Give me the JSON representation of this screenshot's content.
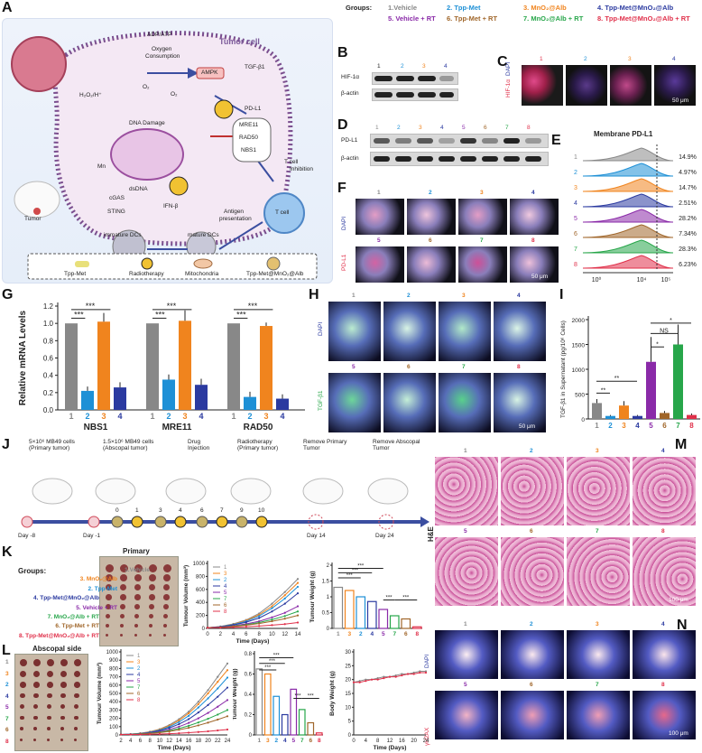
{
  "panels": {
    "A": "A",
    "B": "B",
    "C": "C",
    "D": "D",
    "E": "E",
    "F": "F",
    "G": "G",
    "H": "H",
    "I": "I",
    "J": "J",
    "K": "K",
    "L": "L",
    "M": "M",
    "N": "N"
  },
  "schematic": {
    "tumor_cell": "Tumor cell",
    "adp_atp": "ADP/ATP",
    "oxygen": "Oxygen",
    "consumption": "Consumption",
    "ampk": "AMPK",
    "tgf": "TGF-β1",
    "pdl1": "PD-L1",
    "h2o2": "H₂O₂/H⁺",
    "o2a": "O₂",
    "o2b": "O₂",
    "dna_damage": "DNA Damage",
    "mre11": "MRE11",
    "rad50": "RAD50",
    "nbs1": "NBS1",
    "tcell_inh1": "T cell",
    "tcell_inh2": "Inhibition",
    "tcell": "T cell",
    "tumor": "Tumor",
    "dsdna": "dsDNA",
    "cgas": "cGAS",
    "sting": "STING",
    "ifn": "IFN-β",
    "immature": "immature DCs",
    "mature": "mature DCs",
    "antigen1": "Antigen",
    "antigen2": "presentation",
    "mn": "Mn",
    "legend": [
      "Tpp-Met",
      "Radiotherapy",
      "Mitochondria",
      "Tpp-Met@MnO₂@Alb"
    ]
  },
  "groups_header": {
    "title": "Groups:",
    "g1": "1.Vehicle",
    "g2": "2. Tpp-Met",
    "g3": "3. MnO₂@Alb",
    "g4": "4. Tpp-Met@MnO₂@Alb",
    "g5": "5. Vehicle + RT",
    "g6": "6. Tpp-Met + RT",
    "g7": "7. MnO₂@Alb + RT",
    "g8": "8. Tpp-Met@MnO₂@Alb + RT"
  },
  "colors": {
    "g1": "#888888",
    "g2": "#1e90d6",
    "g3": "#f0841e",
    "g4": "#2b3aa0",
    "g5": "#8a2aa8",
    "g6": "#a0662a",
    "g7": "#27a64a",
    "g8": "#e0304a"
  },
  "blotB": {
    "lanes": [
      "1",
      "2",
      "3",
      "4"
    ],
    "rows": [
      "HIF-1α",
      "β-actin"
    ]
  },
  "blotD": {
    "lanes": [
      "1",
      "2",
      "3",
      "4",
      "5",
      "6",
      "7",
      "8"
    ],
    "rows": [
      "PD-L1",
      "β-actin"
    ]
  },
  "panelC": {
    "lanes": [
      "1",
      "2",
      "3",
      "4"
    ],
    "ylabel_a": "HIF-1α",
    "ylabel_b": "DAPI",
    "scale": "50 μm"
  },
  "panelE": {
    "title": "Membrane PD-L1",
    "lanes": [
      "1",
      "2",
      "3",
      "4",
      "5",
      "6",
      "7",
      "8"
    ],
    "pct": [
      "14.9%",
      "4.97%",
      "14.7%",
      "2.51%",
      "28.2%",
      "7.34%",
      "28.3%",
      "6.23%"
    ],
    "x_ticks": [
      "10⁰",
      "10⁴",
      "10⁵"
    ]
  },
  "panelF": {
    "lanes": [
      "1",
      "2",
      "3",
      "4",
      "5",
      "6",
      "7",
      "8"
    ],
    "ylabel_a": "PD-L1",
    "ylabel_b": "DAPI",
    "scale": "50 μm"
  },
  "panelH": {
    "lanes": [
      "1",
      "2",
      "3",
      "4",
      "5",
      "6",
      "7",
      "8"
    ],
    "ylabel_a": "TGF-β1",
    "ylabel_b": "DAPI",
    "scale": "50 μm"
  },
  "panelM": {
    "lanes": [
      "1",
      "2",
      "3",
      "4",
      "5",
      "6",
      "7",
      "8"
    ],
    "side": "H&E",
    "scale": "100 μm"
  },
  "panelN": {
    "lanes": [
      "1",
      "2",
      "3",
      "4",
      "5",
      "6",
      "7",
      "8"
    ],
    "ylabel_a": "γH2AX",
    "ylabel_b": "DAPI",
    "scale": "100 μm"
  },
  "panelJ": {
    "legend": [
      "5×10⁶ MB49 cells (Primary tumor)",
      "1.5×10⁶ MB49 cells (Abscopal tumor)",
      "Drug Injection",
      "Radiotherapy (Primary tumor)",
      "Remove Primary Tumor",
      "Remove Abscopal Tumor"
    ],
    "days": [
      "Day -8",
      "Day -1",
      "0",
      "1",
      "3",
      "4",
      "6",
      "7",
      "9",
      "10",
      "Day 14",
      "Day 24"
    ]
  },
  "panelK": {
    "groups_title": "Groups:",
    "primary": "Primary",
    "group_labels": [
      "1.Vehicle",
      "3. MnO₂@Alb",
      "2. Tpp-Met",
      "4. Tpp-Met@MnO₂@Alb",
      "5. Vehicle + RT",
      "7. MnO₂@Alb + RT",
      "6. Tpp-Met + RT",
      "8. Tpp-Met@MnO₂@Alb + RT"
    ]
  },
  "panelL": {
    "abscopal": "Abscopal side",
    "rows": [
      "1",
      "3",
      "2",
      "4",
      "5",
      "7",
      "6",
      "8"
    ]
  },
  "chart_data": [
    {
      "id": "G",
      "type": "bar",
      "ylabel": "Relative mRNA Levels",
      "ylim": [
        0,
        1.2
      ],
      "groups": [
        "NBS1",
        "MRE11",
        "RAD50"
      ],
      "categories": [
        "1",
        "2",
        "3",
        "4"
      ],
      "values": [
        [
          1.0,
          0.22,
          1.02,
          0.26
        ],
        [
          1.0,
          0.35,
          1.03,
          0.29
        ],
        [
          1.0,
          0.15,
          0.97,
          0.13
        ]
      ],
      "errors": [
        [
          0,
          0.05,
          0.1,
          0.06
        ],
        [
          0,
          0.06,
          0.12,
          0.07
        ],
        [
          0,
          0.06,
          0.04,
          0.05
        ]
      ],
      "sig": "***",
      "yticks": [
        "0.0",
        "0.2",
        "0.4",
        "0.6",
        "0.8",
        "1.0",
        "1.2"
      ]
    },
    {
      "id": "I",
      "type": "bar",
      "ylabel": "TGF-β1 in Supernatant (pg/10⁶ Cells)",
      "ylim": [
        0,
        2000
      ],
      "categories": [
        "1",
        "2",
        "3",
        "4",
        "5",
        "6",
        "7",
        "8"
      ],
      "values": [
        320,
        60,
        270,
        60,
        1150,
        120,
        1500,
        80
      ],
      "errors": [
        80,
        20,
        90,
        20,
        500,
        40,
        400,
        30
      ],
      "yticks": [
        "0",
        "500",
        "1000",
        "1500",
        "2000"
      ],
      "sig": [
        "**",
        "**",
        "*",
        "NS",
        "*"
      ]
    },
    {
      "id": "K-vol",
      "type": "line",
      "xlabel": "Time (Days)",
      "ylabel": "Tumour Volume (mm³)",
      "ylim": [
        0,
        1000
      ],
      "x": [
        0,
        2,
        4,
        6,
        8,
        10,
        12,
        14
      ],
      "series": [
        {
          "name": "1",
          "values": [
            10,
            30,
            70,
            130,
            230,
            380,
            560,
            760
          ]
        },
        {
          "name": "3",
          "values": [
            10,
            28,
            65,
            120,
            210,
            340,
            510,
            700
          ]
        },
        {
          "name": "2",
          "values": [
            10,
            26,
            60,
            110,
            190,
            310,
            460,
            640
          ]
        },
        {
          "name": "4",
          "values": [
            10,
            24,
            52,
            95,
            160,
            260,
            380,
            540
          ]
        },
        {
          "name": "5",
          "values": [
            10,
            20,
            40,
            70,
            110,
            170,
            240,
            340
          ]
        },
        {
          "name": "7",
          "values": [
            10,
            18,
            34,
            58,
            90,
            135,
            190,
            260
          ]
        },
        {
          "name": "6",
          "values": [
            10,
            16,
            30,
            50,
            75,
            110,
            150,
            200
          ]
        },
        {
          "name": "8",
          "values": [
            10,
            12,
            18,
            26,
            36,
            50,
            66,
            90
          ]
        }
      ]
    },
    {
      "id": "K-wt",
      "type": "bar",
      "ylabel": "Tumour Weight (g)",
      "ylim": [
        0,
        2.0
      ],
      "categories": [
        "1",
        "3",
        "2",
        "4",
        "5",
        "7",
        "6",
        "8"
      ],
      "values": [
        1.3,
        1.2,
        1.0,
        0.85,
        0.6,
        0.4,
        0.3,
        0.05
      ],
      "sig": "***"
    },
    {
      "id": "L-vol",
      "type": "line",
      "xlabel": "Time (Days)",
      "ylabel": "Tumour Volume (mm³)",
      "ylim": [
        0,
        1000
      ],
      "x": [
        2,
        4,
        6,
        8,
        10,
        12,
        14,
        16,
        18,
        20,
        22,
        24
      ],
      "series": [
        {
          "name": "1",
          "values": [
            5,
            10,
            20,
            40,
            70,
            120,
            190,
            280,
            400,
            540,
            700,
            860
          ]
        },
        {
          "name": "3",
          "values": [
            5,
            10,
            19,
            37,
            65,
            110,
            175,
            260,
            370,
            500,
            640,
            780
          ]
        },
        {
          "name": "2",
          "values": [
            5,
            9,
            17,
            33,
            58,
            98,
            155,
            230,
            330,
            440,
            560,
            690
          ]
        },
        {
          "name": "4",
          "values": [
            5,
            8,
            15,
            29,
            50,
            84,
            130,
            190,
            270,
            360,
            460,
            570
          ]
        },
        {
          "name": "5",
          "values": [
            5,
            7,
            13,
            24,
            40,
            66,
            100,
            145,
            200,
            265,
            340,
            420
          ]
        },
        {
          "name": "7",
          "values": [
            5,
            7,
            12,
            20,
            33,
            52,
            78,
            110,
            150,
            195,
            245,
            300
          ]
        },
        {
          "name": "6",
          "values": [
            5,
            6,
            10,
            17,
            27,
            42,
            62,
            86,
            115,
            148,
            185,
            225
          ]
        },
        {
          "name": "8",
          "values": [
            5,
            5,
            6,
            8,
            11,
            15,
            20,
            27,
            35,
            44,
            54,
            65
          ]
        }
      ]
    },
    {
      "id": "L-wt",
      "type": "bar",
      "ylabel": "Tumour Weight (g)",
      "ylim": [
        0,
        0.8
      ],
      "categories": [
        "1",
        "3",
        "2",
        "4",
        "5",
        "7",
        "6",
        "8"
      ],
      "values": [
        0.65,
        0.6,
        0.38,
        0.2,
        0.45,
        0.25,
        0.12,
        0.02
      ],
      "sig": "***"
    },
    {
      "id": "L-bw",
      "type": "line",
      "xlabel": "Time (Days)",
      "ylabel": "Body Weight (g)",
      "ylim": [
        0,
        30
      ],
      "x": [
        0,
        2,
        4,
        6,
        8,
        10,
        12,
        14,
        16,
        18,
        20,
        22,
        24
      ],
      "series": [
        {
          "name": "1",
          "values": [
            19,
            19.5,
            20,
            20,
            20.5,
            21,
            21,
            21.5,
            22,
            22,
            22.5,
            23,
            23
          ]
        },
        {
          "name": "8",
          "values": [
            19,
            19,
            19.5,
            20,
            20,
            20.5,
            21,
            21,
            21.5,
            22,
            22,
            22.5,
            22.5
          ]
        }
      ]
    }
  ]
}
